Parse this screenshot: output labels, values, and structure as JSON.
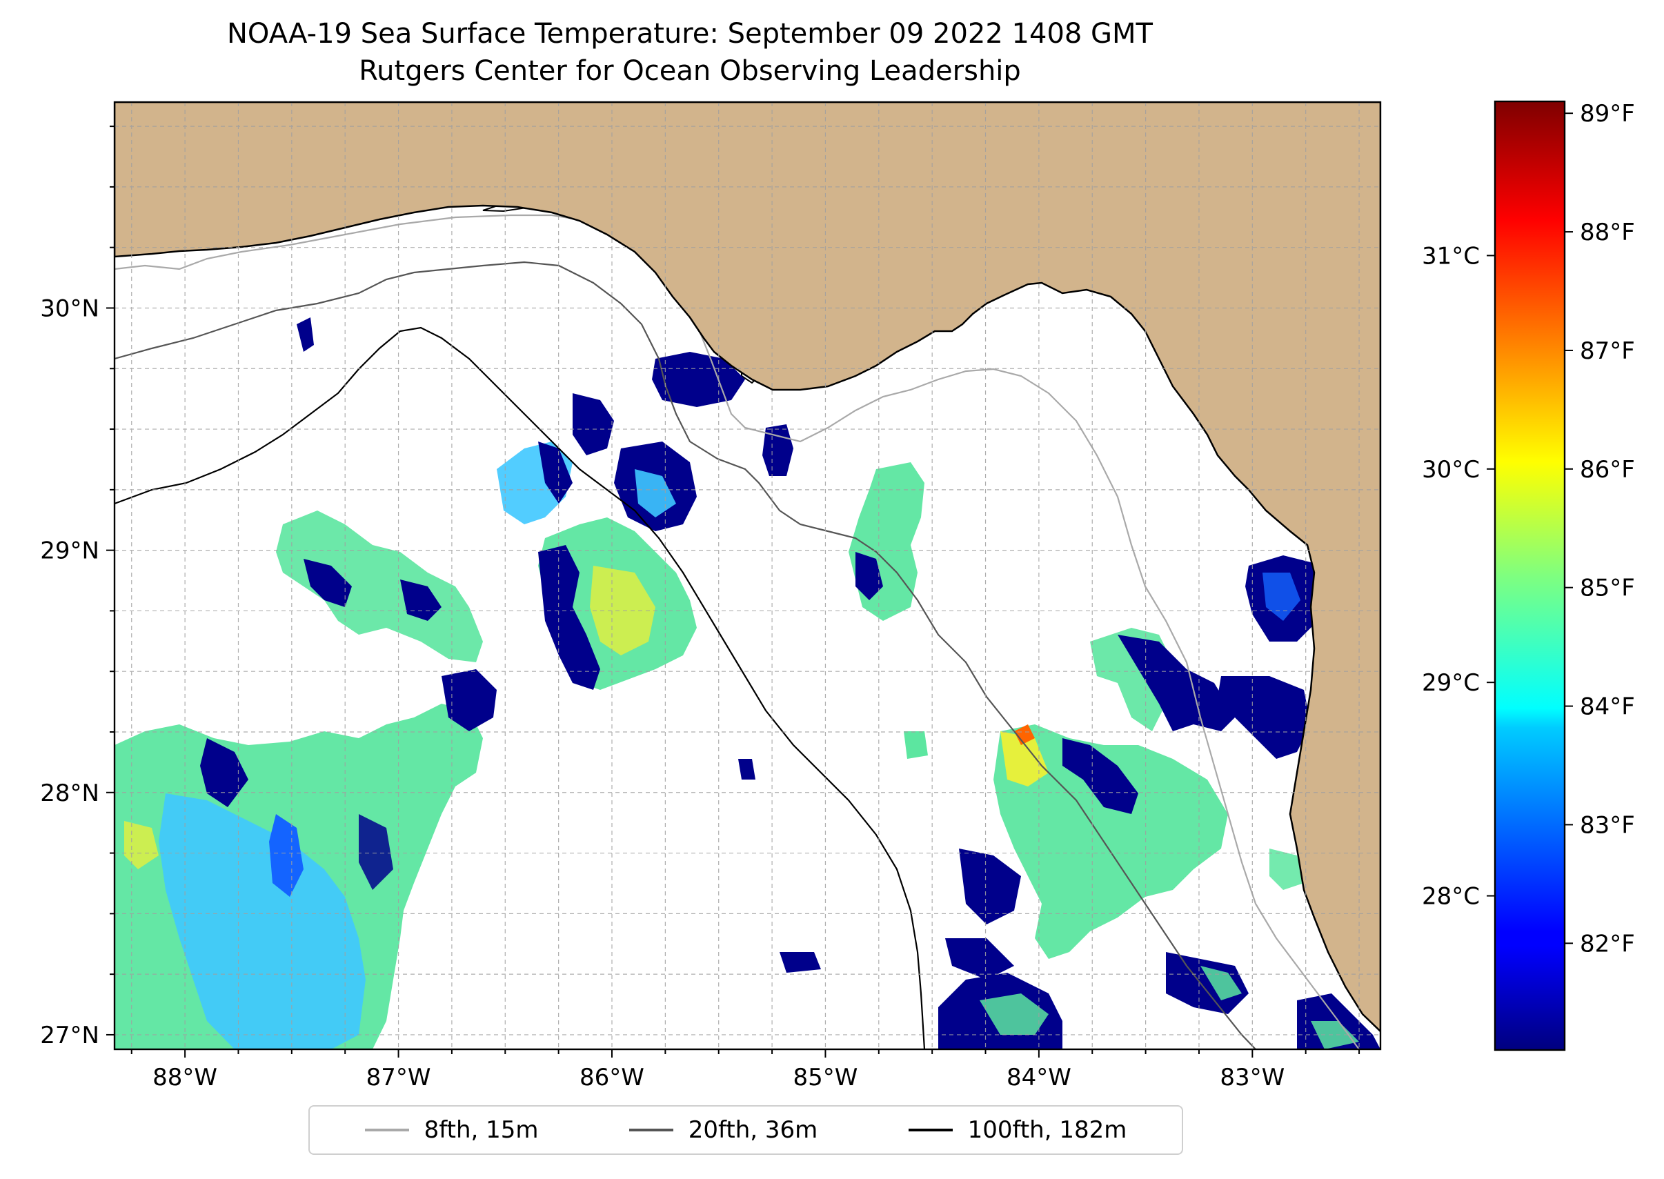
{
  "title": {
    "line1": "NOAA-19 Sea Surface Temperature: September 09 2022 1408 GMT",
    "line2": "Rutgers Center for Ocean Observing Leadership"
  },
  "map": {
    "lon_range": [
      -88.33,
      -82.4
    ],
    "lat_range": [
      26.94,
      30.85
    ],
    "lon_ticks": [
      -88,
      -87,
      -86,
      -85,
      -84,
      -83
    ],
    "lon_tick_labels": [
      "88°W",
      "87°W",
      "86°W",
      "85°W",
      "84°W",
      "83°W"
    ],
    "lat_ticks": [
      27,
      28,
      29,
      30
    ],
    "lat_tick_labels": [
      "27°N",
      "28°N",
      "29°N",
      "30°N"
    ],
    "land_color": "#d2b48c",
    "water_color": "#ffffff",
    "gridlines": true
  },
  "colorbar": {
    "colormap": "jet",
    "celsius_ticks": [
      "31°C",
      "30°C",
      "29°C",
      "28°C"
    ],
    "celsius_values": [
      31,
      30,
      29,
      28
    ],
    "fahrenheit_ticks": [
      "89°F",
      "88°F",
      "87°F",
      "86°F",
      "85°F",
      "84°F",
      "83°F",
      "82°F"
    ],
    "fahrenheit_values": [
      89,
      88,
      87,
      86,
      85,
      84,
      83,
      82
    ],
    "f_min": 81.1,
    "f_max": 89.1
  },
  "legend": {
    "items": [
      {
        "label": "8fth, 15m",
        "color": "#a9a9a9"
      },
      {
        "label": "20fth, 36m",
        "color": "#555555"
      },
      {
        "label": "100fth, 182m",
        "color": "#000000"
      }
    ]
  }
}
